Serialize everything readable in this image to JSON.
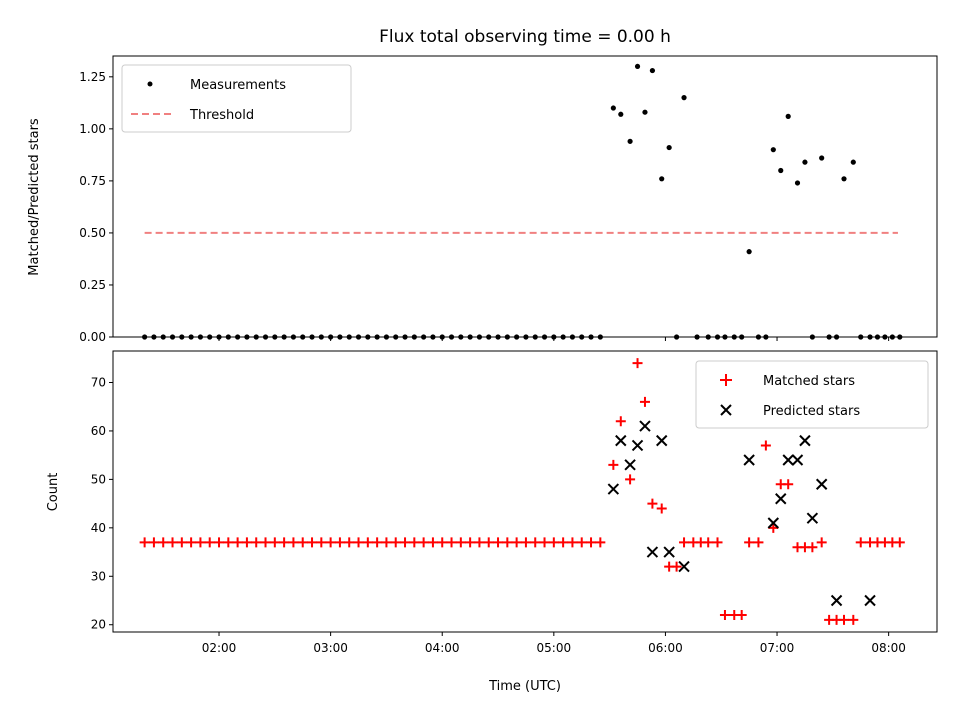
{
  "colors": {
    "threshold": "#f08080",
    "matched": "#ff0000",
    "predicted": "#000000",
    "measurement": "#000000"
  },
  "chart_data": [
    {
      "type": "scatter",
      "title": "Flux total observing time = 0.00 h",
      "xlabel": "",
      "ylabel": "Matched/Predicted stars",
      "ylim": [
        0,
        1.35
      ],
      "yticks": [
        "0.00",
        "0.25",
        "0.50",
        "0.75",
        "1.00",
        "1.25"
      ],
      "legend": {
        "placement": "top-left",
        "entries": [
          "Measurements",
          "Threshold"
        ]
      },
      "series": [
        {
          "name": "Measurements",
          "x": [
            "01:20",
            "01:25",
            "01:30",
            "01:35",
            "01:40",
            "01:45",
            "01:50",
            "01:55",
            "02:00",
            "02:05",
            "02:10",
            "02:15",
            "02:20",
            "02:25",
            "02:30",
            "02:35",
            "02:40",
            "02:45",
            "02:50",
            "02:55",
            "03:00",
            "03:05",
            "03:10",
            "03:15",
            "03:20",
            "03:25",
            "03:30",
            "03:35",
            "03:40",
            "03:45",
            "03:50",
            "03:55",
            "04:00",
            "04:05",
            "04:10",
            "04:15",
            "04:20",
            "04:25",
            "04:30",
            "04:35",
            "04:40",
            "04:45",
            "04:50",
            "04:55",
            "05:00",
            "05:05",
            "05:10",
            "05:15",
            "05:20",
            "05:25",
            "05:32",
            "05:36",
            "05:41",
            "05:45",
            "05:49",
            "05:53",
            "05:58",
            "06:02",
            "06:06",
            "06:10",
            "06:17",
            "06:23",
            "06:28",
            "06:32",
            "06:37",
            "06:41",
            "06:45",
            "06:50",
            "06:54",
            "06:58",
            "07:02",
            "07:06",
            "07:11",
            "07:15",
            "07:19",
            "07:24",
            "07:28",
            "07:32",
            "07:36",
            "07:41",
            "07:45",
            "07:50",
            "07:54",
            "07:58",
            "08:02",
            "08:06"
          ],
          "y": [
            0,
            0,
            0,
            0,
            0,
            0,
            0,
            0,
            0,
            0,
            0,
            0,
            0,
            0,
            0,
            0,
            0,
            0,
            0,
            0,
            0,
            0,
            0,
            0,
            0,
            0,
            0,
            0,
            0,
            0,
            0,
            0,
            0,
            0,
            0,
            0,
            0,
            0,
            0,
            0,
            0,
            0,
            0,
            0,
            0,
            0,
            0,
            0,
            0,
            0,
            1.1,
            1.07,
            0.94,
            1.3,
            1.08,
            1.28,
            0.76,
            0.91,
            0,
            1.15,
            0,
            0,
            0,
            0,
            0,
            0,
            0.41,
            0,
            0,
            0.9,
            0.8,
            1.06,
            0.74,
            0.84,
            0,
            0.86,
            0,
            0,
            0.76,
            0.84,
            0,
            0,
            0,
            0,
            0,
            0
          ]
        },
        {
          "name": "Threshold",
          "x": [
            "01:20",
            "08:05"
          ],
          "y": [
            0.5,
            0.5
          ]
        }
      ]
    },
    {
      "type": "scatter",
      "title": "",
      "xlabel": "Time (UTC)",
      "ylabel": "Count",
      "ylim": [
        18.5,
        76.5
      ],
      "yticks": [
        "20",
        "30",
        "40",
        "50",
        "60",
        "70"
      ],
      "xlim": [
        "01:03",
        "08:26"
      ],
      "xticks": [
        "02:00",
        "03:00",
        "04:00",
        "05:00",
        "06:00",
        "07:00",
        "08:00"
      ],
      "legend": {
        "placement": "top-right",
        "entries": [
          "Matched stars",
          "Predicted stars"
        ]
      },
      "series": [
        {
          "name": "Matched stars",
          "x": [
            "01:20",
            "01:25",
            "01:30",
            "01:35",
            "01:40",
            "01:45",
            "01:50",
            "01:55",
            "02:00",
            "02:05",
            "02:10",
            "02:15",
            "02:20",
            "02:25",
            "02:30",
            "02:35",
            "02:40",
            "02:45",
            "02:50",
            "02:55",
            "03:00",
            "03:05",
            "03:10",
            "03:15",
            "03:20",
            "03:25",
            "03:30",
            "03:35",
            "03:40",
            "03:45",
            "03:50",
            "03:55",
            "04:00",
            "04:05",
            "04:10",
            "04:15",
            "04:20",
            "04:25",
            "04:30",
            "04:35",
            "04:40",
            "04:45",
            "04:50",
            "04:55",
            "05:00",
            "05:05",
            "05:10",
            "05:15",
            "05:20",
            "05:25",
            "05:32",
            "05:36",
            "05:41",
            "05:45",
            "05:49",
            "05:53",
            "05:58",
            "06:02",
            "06:06",
            "06:10",
            "06:15",
            "06:19",
            "06:23",
            "06:28",
            "06:32",
            "06:37",
            "06:41",
            "06:45",
            "06:50",
            "06:54",
            "06:58",
            "07:02",
            "07:06",
            "07:11",
            "07:15",
            "07:19",
            "07:24",
            "07:28",
            "07:32",
            "07:36",
            "07:41",
            "07:45",
            "07:50",
            "07:54",
            "07:58",
            "08:02",
            "08:06"
          ],
          "y": [
            37,
            37,
            37,
            37,
            37,
            37,
            37,
            37,
            37,
            37,
            37,
            37,
            37,
            37,
            37,
            37,
            37,
            37,
            37,
            37,
            37,
            37,
            37,
            37,
            37,
            37,
            37,
            37,
            37,
            37,
            37,
            37,
            37,
            37,
            37,
            37,
            37,
            37,
            37,
            37,
            37,
            37,
            37,
            37,
            37,
            37,
            37,
            37,
            37,
            37,
            53,
            62,
            50,
            74,
            66,
            45,
            44,
            32,
            32,
            37,
            37,
            37,
            37,
            37,
            22,
            22,
            22,
            37,
            37,
            57,
            40,
            49,
            49,
            36,
            36,
            36,
            37,
            21,
            21,
            21,
            21,
            37,
            37,
            37,
            37,
            37,
            37
          ]
        },
        {
          "name": "Predicted stars",
          "x": [
            "05:32",
            "05:36",
            "05:41",
            "05:45",
            "05:49",
            "05:53",
            "05:58",
            "06:02",
            "06:10",
            "06:45",
            "06:58",
            "07:02",
            "07:06",
            "07:11",
            "07:15",
            "07:19",
            "07:24",
            "07:32",
            "07:50"
          ],
          "y": [
            48,
            58,
            53,
            57,
            61,
            35,
            58,
            35,
            32,
            54,
            41,
            46,
            54,
            54,
            58,
            42,
            49,
            25,
            25
          ]
        }
      ]
    }
  ]
}
